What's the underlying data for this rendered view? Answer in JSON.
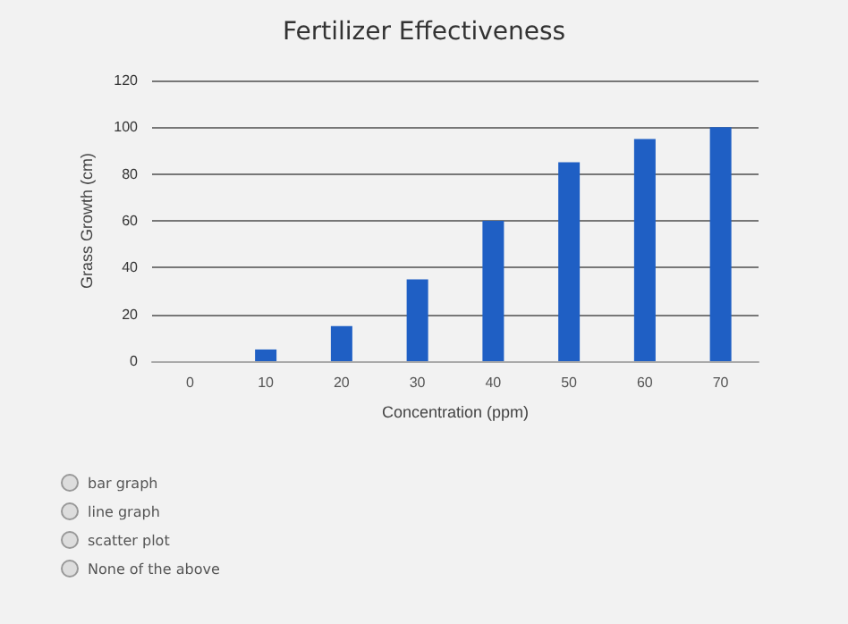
{
  "chart_data": {
    "type": "bar",
    "title": "Fertilizer Effectiveness",
    "xlabel": "Concentration (ppm)",
    "ylabel": "Grass Growth (cm)",
    "categories": [
      "0",
      "10",
      "20",
      "30",
      "40",
      "50",
      "60",
      "70"
    ],
    "values": [
      0,
      5,
      15,
      35,
      60,
      85,
      95,
      100
    ],
    "color": "#1f5fc4",
    "ylim": [
      0,
      120
    ],
    "yticks": [
      0,
      20,
      40,
      60,
      80,
      100,
      120
    ],
    "grid": "y",
    "annotations": [
      "bar graph",
      "line graph",
      "scatter plot",
      "None of the above"
    ]
  }
}
